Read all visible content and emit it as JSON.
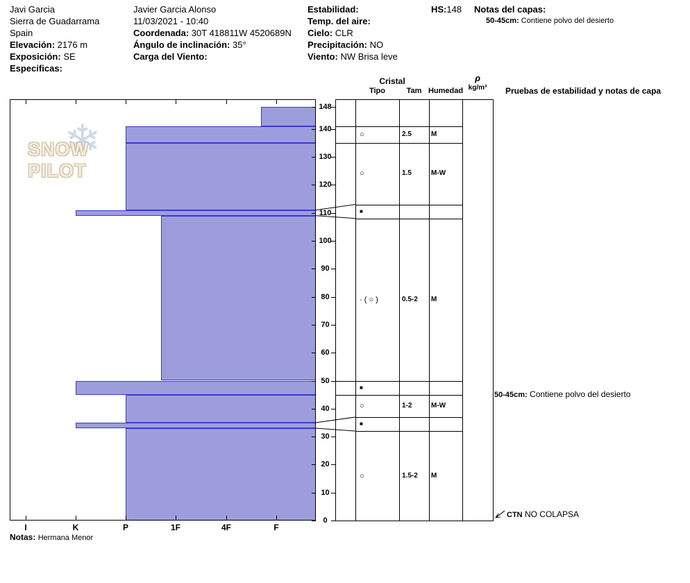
{
  "header": {
    "observer": "Javi Garcia",
    "range": "Sierra de Guadarrama",
    "country": "Spain",
    "elevation_label": "Elevación:",
    "elevation_value": "2176 m",
    "aspect_label": "Exposición:",
    "aspect_value": "SE",
    "specifics_label": "Especificas:",
    "specifics_value": "",
    "pit_name": "Javier Garcia Alonso",
    "datetime": "11/03/2021 - 10:40",
    "coord_label": "Coordenada:",
    "coord_value": "30T 418811W 4520689N",
    "slope_label": "Ángulo de inclinación:",
    "slope_value": "35°",
    "windload_label": "Carga del Viento:",
    "windload_value": "",
    "stability_label": "Estabilidad:",
    "stability_value": "",
    "airtemp_label": "Temp. del aire:",
    "airtemp_value": "",
    "sky_label": "Cielo:",
    "sky_value": "CLR",
    "precip_label": "Precipitación:",
    "precip_value": "NO",
    "wind_label": "Viento:",
    "wind_value": "NW Brisa leve",
    "hs_label": "HS:",
    "hs_value": "148",
    "layer_notes_label": "Notas del capas:",
    "layer_note_prefix": "50-45cm:",
    "layer_note_text": "Contiene polvo del desierto"
  },
  "columns": {
    "cristal": "Cristal",
    "tipo": "Tipo",
    "tam": "Tam",
    "humedad": "Humedad",
    "rho": "ρ",
    "rho_units": "kg/m³",
    "stability": "Pruebas de estabilidad y notas de capa"
  },
  "footer": {
    "notes_label": "Notas:",
    "notes_value": "Hermana Menor"
  },
  "logo": {
    "text": "SNOW PILOT",
    "flake": "❄"
  },
  "chart_data": {
    "type": "snow-profile",
    "hs_cm": 148,
    "depth_axis_ticks": [
      0,
      10,
      20,
      30,
      40,
      50,
      60,
      70,
      80,
      90,
      100,
      110,
      120,
      130,
      140,
      148
    ],
    "hardness_axis": [
      {
        "label": "I",
        "value": 6
      },
      {
        "label": "K",
        "value": 5
      },
      {
        "label": "P",
        "value": 4
      },
      {
        "label": "1F",
        "value": 3
      },
      {
        "label": "4F",
        "value": 2
      },
      {
        "label": "F",
        "value": 1
      }
    ],
    "layers": [
      {
        "top_cm": 148,
        "bottom_cm": 141,
        "hardness": "F+",
        "hardness_value": 1.3,
        "grain": "",
        "size_mm": "",
        "moisture": ""
      },
      {
        "top_cm": 141,
        "bottom_cm": 135,
        "hardness": "P",
        "hardness_value": 4,
        "grain": "○",
        "size_mm": "2.5",
        "moisture": "M"
      },
      {
        "top_cm": 135,
        "bottom_cm": 111,
        "hardness": "P",
        "hardness_value": 4,
        "grain": "○",
        "size_mm": "1.5",
        "moisture": "M-W",
        "row_bottom_cm": 113
      },
      {
        "top_cm": 111,
        "bottom_cm": 109,
        "hardness": "K",
        "hardness_value": 5,
        "grain": "■",
        "size_mm": "",
        "moisture": "",
        "row_top_cm": 113,
        "row_bottom_cm": 108,
        "flag": true
      },
      {
        "top_cm": 109,
        "bottom_cm": 50,
        "hardness": "1F+",
        "hardness_value": 3.3,
        "grain": "· ( ○ )",
        "size_mm": "0.5-2",
        "moisture": "M",
        "row_top_cm": 108
      },
      {
        "top_cm": 50,
        "bottom_cm": 45,
        "hardness": "K",
        "hardness_value": 5,
        "grain": "■",
        "size_mm": "",
        "moisture": ""
      },
      {
        "top_cm": 45,
        "bottom_cm": 35,
        "hardness": "P",
        "hardness_value": 4,
        "grain": "○",
        "size_mm": "1-2",
        "moisture": "M-W",
        "row_bottom_cm": 37
      },
      {
        "top_cm": 35,
        "bottom_cm": 33,
        "hardness": "K",
        "hardness_value": 5,
        "grain": "■",
        "size_mm": "",
        "moisture": "",
        "row_top_cm": 37,
        "row_bottom_cm": 32,
        "flag": true
      },
      {
        "top_cm": 33,
        "bottom_cm": 0,
        "hardness": "P",
        "hardness_value": 4,
        "grain": "○",
        "size_mm": "1.5-2",
        "moisture": "M",
        "row_top_cm": 32
      }
    ],
    "stability_notes": [
      {
        "depth_cm": 45,
        "prefix": "50-45cm:",
        "text": "Contiene polvo del desierto",
        "arrow": false
      },
      {
        "depth_cm": 2,
        "prefix": "CTN",
        "text": "NO COLAPSA",
        "arrow": true
      }
    ],
    "colors": {
      "bar_fill": "#9d9dde",
      "bar_stroke": "#3a3ac8"
    }
  }
}
